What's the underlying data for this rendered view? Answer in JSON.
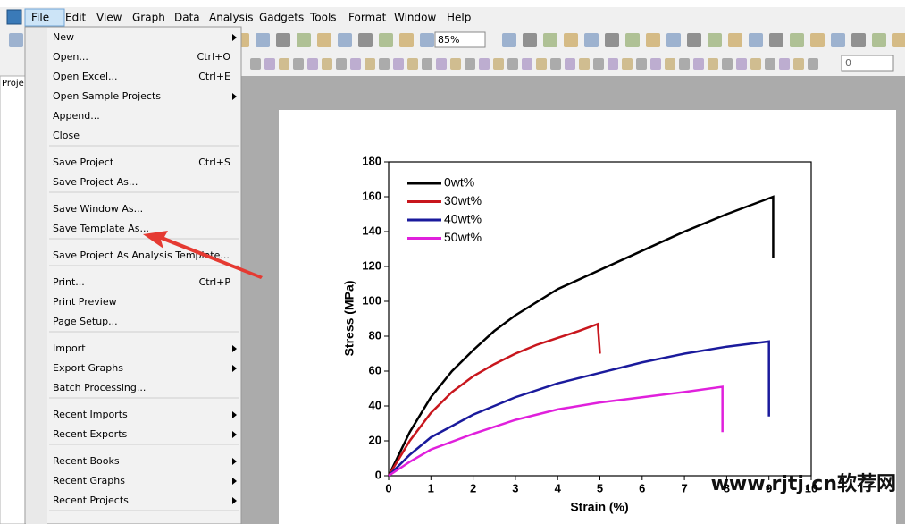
{
  "menubar": {
    "items": [
      "File",
      "Edit",
      "View",
      "Graph",
      "Data",
      "Analysis",
      "Gadgets",
      "Tools",
      "Format",
      "Window",
      "Help"
    ],
    "active": "File"
  },
  "toolbar": {
    "zoom": "85%",
    "line_width": "0"
  },
  "project_panel": {
    "title": "Proje"
  },
  "file_menu": {
    "groups": [
      [
        {
          "label": "New",
          "submenu": true
        },
        {
          "label": "Open...",
          "shortcut": "Ctrl+O"
        },
        {
          "label": "Open Excel...",
          "shortcut": "Ctrl+E"
        },
        {
          "label": "Open Sample Projects",
          "submenu": true
        },
        {
          "label": "Append..."
        },
        {
          "label": "Close"
        }
      ],
      [
        {
          "label": "Save Project",
          "shortcut": "Ctrl+S"
        },
        {
          "label": "Save Project As..."
        }
      ],
      [
        {
          "label": "Save Window As..."
        },
        {
          "label": "Save Template As..."
        }
      ],
      [
        {
          "label": "Save Project As Analysis Template...",
          "disabled": true
        }
      ],
      [
        {
          "label": "Print...",
          "shortcut": "Ctrl+P"
        },
        {
          "label": "Print Preview"
        },
        {
          "label": "Page Setup..."
        }
      ],
      [
        {
          "label": "Import",
          "submenu": true
        },
        {
          "label": "Export Graphs",
          "submenu": true
        },
        {
          "label": "Batch Processing..."
        }
      ],
      [
        {
          "label": "Recent Imports",
          "submenu": true
        },
        {
          "label": "Recent Exports",
          "submenu": true
        }
      ],
      [
        {
          "label": "Recent Books",
          "submenu": true
        },
        {
          "label": "Recent Graphs",
          "submenu": true
        },
        {
          "label": "Recent Projects",
          "submenu": true
        }
      ]
    ]
  },
  "chart_data": {
    "type": "line",
    "x_label": "Strain (%)",
    "y_label": "Stress (MPa)",
    "xlim": [
      0,
      10
    ],
    "xticks": [
      0,
      1,
      2,
      3,
      4,
      5,
      6,
      7,
      8,
      9,
      10
    ],
    "ylim": [
      0,
      180
    ],
    "yticks": [
      0,
      20,
      40,
      60,
      80,
      100,
      120,
      140,
      160,
      180
    ],
    "legend": "top-left",
    "series": [
      {
        "name": "0wt%",
        "color": "#000000",
        "x": [
          0,
          0.5,
          1,
          1.5,
          2,
          2.5,
          3,
          4,
          5,
          6,
          7,
          8,
          9.1,
          9.1
        ],
        "values": [
          0,
          25,
          45,
          60,
          72,
          83,
          92,
          107,
          118,
          129,
          140,
          150,
          160,
          125
        ]
      },
      {
        "name": "30wt%",
        "color": "#c8161d",
        "x": [
          0,
          0.5,
          1,
          1.5,
          2,
          2.5,
          3,
          3.5,
          4,
          4.5,
          4.95,
          5.0
        ],
        "values": [
          0,
          20,
          36,
          48,
          57,
          64,
          70,
          75,
          79,
          83,
          87,
          70
        ]
      },
      {
        "name": "40wt%",
        "color": "#1a1a9c",
        "x": [
          0,
          0.5,
          1,
          2,
          3,
          4,
          5,
          6,
          7,
          8,
          9.0,
          9.0
        ],
        "values": [
          0,
          12,
          22,
          35,
          45,
          53,
          59,
          65,
          70,
          74,
          77,
          34
        ]
      },
      {
        "name": "50wt%",
        "color": "#e020dc",
        "x": [
          0,
          0.5,
          1,
          2,
          3,
          4,
          5,
          6,
          7,
          7.9,
          7.9
        ],
        "values": [
          0,
          8,
          15,
          24,
          32,
          38,
          42,
          45,
          48,
          51,
          25
        ]
      }
    ]
  },
  "watermark": "www.rjtj.cn软荐网"
}
